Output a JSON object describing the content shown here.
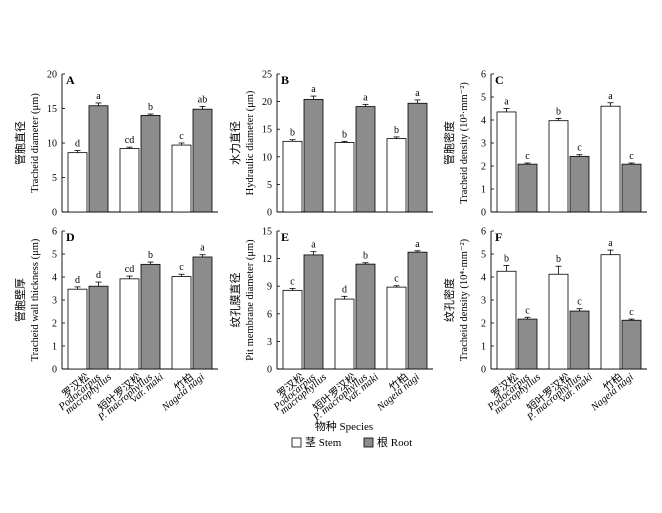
{
  "colors": {
    "stem": "#ffffff",
    "root": "#8c8c8c",
    "stroke": "#000000"
  },
  "figure": {
    "xlabel": "物种 Species",
    "legend": {
      "stem": "茎 Stem",
      "root": "根 Root"
    }
  },
  "species": [
    {
      "zh": "罗汉松",
      "latin": [
        "Podocarpus",
        "macrophyllus"
      ]
    },
    {
      "zh": "短叶罗汉松",
      "latin": [
        "P. macrophyllus",
        "var. maki"
      ]
    },
    {
      "zh": "竹柏",
      "latin": [
        "Nageia nagi"
      ]
    }
  ],
  "chart_data": [
    {
      "panel": "A",
      "type": "bar",
      "ylabel_zh": "管胞直径",
      "ylabel": "Tracheid diameter (μm)",
      "ylim": [
        0,
        20
      ],
      "yticks": [
        0,
        5,
        10,
        15,
        20
      ],
      "categories": [
        "罗汉松",
        "短叶罗汉松",
        "竹柏"
      ],
      "series": [
        {
          "name": "茎 Stem",
          "values": [
            8.6,
            9.2,
            9.7
          ],
          "errors": [
            0.3,
            0.2,
            0.3
          ],
          "labels": [
            "d",
            "cd",
            "c"
          ]
        },
        {
          "name": "根 Root",
          "values": [
            15.4,
            14.0,
            14.9
          ],
          "errors": [
            0.4,
            0.2,
            0.4
          ],
          "labels": [
            "a",
            "b",
            "ab"
          ]
        }
      ]
    },
    {
      "panel": "B",
      "type": "bar",
      "ylabel_zh": "水力直径",
      "ylabel": "Hydraulic diameter (μm)",
      "ylim": [
        0,
        25
      ],
      "yticks": [
        0,
        5,
        10,
        15,
        20,
        25
      ],
      "categories": [
        "罗汉松",
        "短叶罗汉松",
        "竹柏"
      ],
      "series": [
        {
          "name": "茎 Stem",
          "values": [
            12.8,
            12.6,
            13.3
          ],
          "errors": [
            0.3,
            0.2,
            0.3
          ],
          "labels": [
            "b",
            "b",
            "b"
          ]
        },
        {
          "name": "根 Root",
          "values": [
            20.4,
            19.1,
            19.7
          ],
          "errors": [
            0.6,
            0.4,
            0.6
          ],
          "labels": [
            "a",
            "a",
            "a"
          ]
        }
      ]
    },
    {
      "panel": "C",
      "type": "bar",
      "ylabel_zh": "管胞密度",
      "ylabel": "Tracheid density (10³·mm⁻²)",
      "ylim": [
        0,
        6
      ],
      "yticks": [
        0,
        1,
        2,
        3,
        4,
        5,
        6
      ],
      "categories": [
        "罗汉松",
        "短叶罗汉松",
        "竹柏"
      ],
      "series": [
        {
          "name": "茎 Stem",
          "values": [
            4.35,
            3.97,
            4.6
          ],
          "errors": [
            0.15,
            0.1,
            0.15
          ],
          "labels": [
            "a",
            "b",
            "a"
          ]
        },
        {
          "name": "根 Root",
          "values": [
            2.08,
            2.42,
            2.08
          ],
          "errors": [
            0.05,
            0.07,
            0.05
          ],
          "labels": [
            "c",
            "c",
            "c"
          ]
        }
      ]
    },
    {
      "panel": "D",
      "type": "bar",
      "ylabel_zh": "管胞壁厚",
      "ylabel": "Tracheid wall thickness (μm)",
      "ylim": [
        0,
        6
      ],
      "yticks": [
        0,
        1,
        2,
        3,
        4,
        5,
        6
      ],
      "categories": [
        "罗汉松",
        "短叶罗汉松",
        "竹柏"
      ],
      "series": [
        {
          "name": "茎 Stem",
          "values": [
            3.47,
            3.92,
            4.02
          ],
          "errors": [
            0.1,
            0.12,
            0.1
          ],
          "labels": [
            "d",
            "cd",
            "c"
          ]
        },
        {
          "name": "根 Root",
          "values": [
            3.6,
            4.55,
            4.87
          ],
          "errors": [
            0.18,
            0.1,
            0.1
          ],
          "labels": [
            "d",
            "b",
            "a"
          ]
        }
      ]
    },
    {
      "panel": "E",
      "type": "bar",
      "ylabel_zh": "纹孔膜直径",
      "ylabel": "Pit membrane diameter (μm)",
      "ylim": [
        0,
        15
      ],
      "yticks": [
        0,
        3,
        6,
        9,
        12,
        15
      ],
      "categories": [
        "罗汉松",
        "短叶罗汉松",
        "竹柏"
      ],
      "series": [
        {
          "name": "茎 Stem",
          "values": [
            8.55,
            7.6,
            8.9
          ],
          "errors": [
            0.2,
            0.3,
            0.15
          ],
          "labels": [
            "c",
            "d",
            "c"
          ]
        },
        {
          "name": "根 Root",
          "values": [
            12.4,
            11.4,
            12.7
          ],
          "errors": [
            0.35,
            0.15,
            0.15
          ],
          "labels": [
            "a",
            "b",
            "a"
          ]
        }
      ]
    },
    {
      "panel": "F",
      "type": "bar",
      "ylabel_zh": "纹孔密度",
      "ylabel": "Tracheid density (10⁴·mm⁻²)",
      "ylim": [
        0,
        6
      ],
      "yticks": [
        0,
        1,
        2,
        3,
        4,
        5,
        6
      ],
      "categories": [
        "罗汉松",
        "短叶罗汉松",
        "竹柏"
      ],
      "series": [
        {
          "name": "茎 Stem",
          "values": [
            4.25,
            4.12,
            4.97
          ],
          "errors": [
            0.25,
            0.35,
            0.2
          ],
          "labels": [
            "b",
            "b",
            "a"
          ]
        },
        {
          "name": "根 Root",
          "values": [
            2.17,
            2.52,
            2.12
          ],
          "errors": [
            0.08,
            0.1,
            0.05
          ],
          "labels": [
            "c",
            "c",
            "c"
          ]
        }
      ]
    }
  ]
}
